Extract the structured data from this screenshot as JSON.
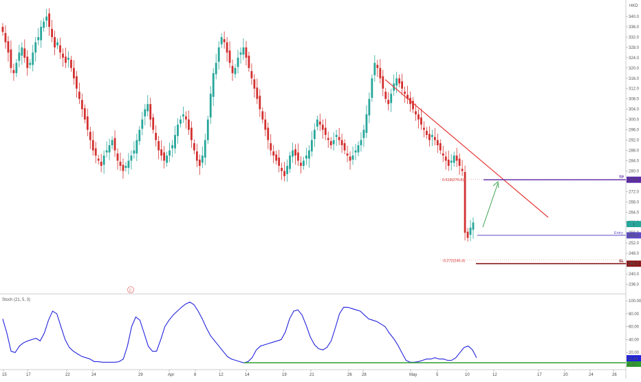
{
  "currency": "HKD",
  "colors": {
    "up": "#26a69a",
    "down": "#d32f2f",
    "trendline": "#e53935",
    "tp_line": "#5b2aa8",
    "entry_line": "#5b4bc4",
    "sl_line": "#8b1a1a",
    "arrow": "#3fa34d",
    "stoch": "#2222dd",
    "stoch_base": "#2e9e2e",
    "grid": "#eeeeee"
  },
  "price_axis": {
    "min": 234,
    "max": 342,
    "ticks": [
      "340.0",
      "336.0",
      "332.0",
      "328.0",
      "324.0",
      "320.0",
      "316.0",
      "312.0",
      "308.0",
      "304.0",
      "300.0",
      "296.0",
      "292.0",
      "288.0",
      "284.0",
      "280.0",
      "276.0",
      "272.0",
      "268.0",
      "264.0",
      "260.0",
      "256.0",
      "252.0",
      "248.0",
      "244.0",
      "240.0",
      "236.0"
    ]
  },
  "date_axis": [
    "15",
    "17",
    "22",
    "24",
    "29",
    "Apr",
    "8",
    "12",
    "14",
    "19",
    "21",
    "26",
    "28",
    "May",
    "5",
    "10",
    "12",
    "17",
    "20",
    "24",
    "26"
  ],
  "fib_labels": {
    "upper": "0.618(276.8)",
    "lower": "-0.272(245.4)"
  },
  "badges": {
    "tp_label": "TP",
    "tp_value": "276.6",
    "current_value": "1",
    "entry_label": "Entry",
    "entry_value": "255.0",
    "sl_label": "SL",
    "sl_value": "244.0"
  },
  "earnings_marker": "E",
  "stoch": {
    "title": "Stoch (21, 5, 3)",
    "ticks": [
      "100.00",
      "80.00",
      "60.00",
      "40.00",
      "20.00"
    ],
    "value_badge": "11.64",
    "base_badge": "4.10"
  },
  "chart_data": {
    "type": "candlestick",
    "symbol_currency": "HKD",
    "ylim": [
      234,
      342
    ],
    "candles_close": [
      334,
      330,
      326,
      320,
      318,
      322,
      326,
      328,
      324,
      320,
      322,
      326,
      330,
      332,
      336,
      338,
      340,
      336,
      332,
      328,
      330,
      326,
      324,
      322,
      324,
      320,
      316,
      312,
      308,
      304,
      300,
      296,
      292,
      288,
      286,
      284,
      282,
      286,
      288,
      290,
      292,
      288,
      284,
      282,
      280,
      282,
      284,
      286,
      288,
      292,
      296,
      300,
      304,
      306,
      300,
      296,
      292,
      288,
      286,
      284,
      286,
      288,
      290,
      294,
      298,
      300,
      302,
      300,
      296,
      292,
      288,
      284,
      282,
      286,
      292,
      300,
      310,
      318,
      322,
      328,
      332,
      330,
      326,
      322,
      318,
      320,
      324,
      326,
      328,
      324,
      320,
      316,
      312,
      308,
      304,
      300,
      296,
      292,
      288,
      286,
      284,
      282,
      280,
      278,
      282,
      286,
      288,
      286,
      284,
      282,
      284,
      286,
      288,
      292,
      296,
      300,
      298,
      296,
      294,
      292,
      290,
      292,
      294,
      292,
      290,
      288,
      286,
      284,
      286,
      288,
      290,
      292,
      296,
      302,
      308,
      316,
      322,
      320,
      316,
      312,
      308,
      306,
      310,
      314,
      316,
      314,
      312,
      310,
      308,
      306,
      304,
      302,
      300,
      298,
      296,
      294,
      292,
      294,
      292,
      290,
      288,
      286,
      284,
      282,
      284,
      286,
      284,
      282,
      280,
      256,
      254,
      258,
      260
    ],
    "trendline": {
      "from_price": 315.5,
      "to_price": 262
    },
    "levels": {
      "tp": 276.6,
      "entry": 255.0,
      "sl": 244.0,
      "fib_0618": 276.8,
      "fib_neg_0272": 245.4
    },
    "stochastic": {
      "params": "Stoch (21, 5, 3)",
      "values": [
        72,
        50,
        22,
        20,
        30,
        35,
        38,
        40,
        42,
        38,
        50,
        70,
        84,
        80,
        60,
        40,
        28,
        22,
        18,
        14,
        12,
        10,
        6,
        6,
        5,
        5,
        5,
        5,
        6,
        10,
        30,
        60,
        75,
        70,
        50,
        30,
        22,
        22,
        40,
        60,
        70,
        78,
        84,
        90,
        95,
        98,
        94,
        84,
        72,
        58,
        46,
        38,
        30,
        22,
        14,
        10,
        8,
        6,
        4,
        6,
        12,
        24,
        30,
        32,
        34,
        36,
        38,
        40,
        52,
        72,
        84,
        86,
        78,
        62,
        44,
        32,
        26,
        24,
        28,
        38,
        58,
        80,
        90,
        90,
        88,
        86,
        84,
        78,
        72,
        70,
        68,
        64,
        60,
        50,
        42,
        32,
        20,
        8,
        5,
        5,
        6,
        8,
        10,
        10,
        12,
        10,
        10,
        8,
        8,
        12,
        20,
        28,
        30,
        24,
        12
      ],
      "ylim": [
        0,
        100
      ]
    }
  }
}
